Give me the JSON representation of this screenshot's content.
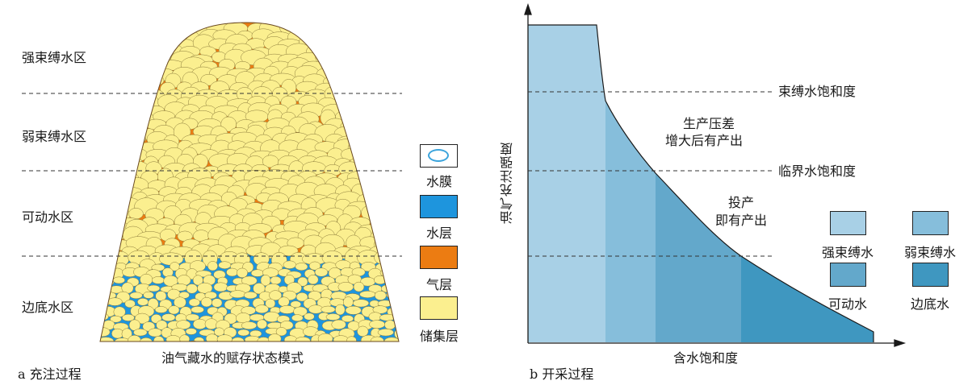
{
  "colors": {
    "water_film_fill": "#ffffff",
    "water_film_ring": "#3ba4dc",
    "water_layer": "#1e95dd",
    "gas_layer": "#ec7c12",
    "reservoir": "#fbef8f",
    "strong_bound": "#a8d0e6",
    "weak_bound": "#86bedb",
    "movable": "#63a8cb",
    "edge_bottom": "#3f97c0"
  },
  "panel_a": {
    "zones": [
      "强束缚水区",
      "弱束缚水区",
      "可动水区",
      "边底水区"
    ],
    "legend": [
      {
        "key": "water_film",
        "label": "水膜"
      },
      {
        "key": "water_layer",
        "label": "水层"
      },
      {
        "key": "gas_layer",
        "label": "气层"
      },
      {
        "key": "reservoir",
        "label": "储集层"
      }
    ],
    "title": "油气藏水的赋存状态模式",
    "caption": "a 充注过程"
  },
  "panel_b": {
    "y_axis_label": "油气充注强度",
    "x_axis_label": "含水饱和度",
    "levels": [
      "束缚水饱和度",
      "临界水饱和度"
    ],
    "annotations": [
      {
        "line1": "生产压差",
        "line2": "增大后有产出"
      },
      {
        "line1": "投产",
        "line2": "即有产出"
      }
    ],
    "legend": [
      {
        "key": "strong_bound",
        "label": "强束缚水"
      },
      {
        "key": "weak_bound",
        "label": "弱束缚水"
      },
      {
        "key": "movable",
        "label": "可动水"
      },
      {
        "key": "edge_bottom",
        "label": "边底水"
      }
    ],
    "caption": "b 开采过程"
  }
}
